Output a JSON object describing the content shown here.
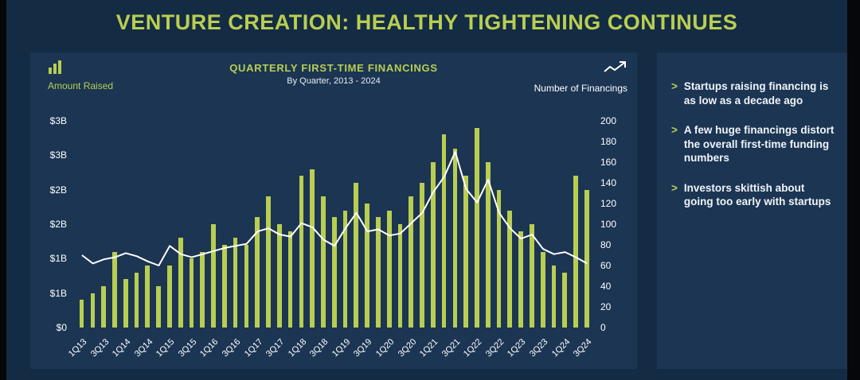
{
  "slide": {
    "title": "VENTURE CREATION: HEALTHY TIGHTENING CONTINUES"
  },
  "chart_data": {
    "type": "bar",
    "title": "QUARTERLY FIRST-TIME FINANCINGS",
    "subtitle": "By Quarter, 2013 - 2024",
    "grid": false,
    "legend_position": "top",
    "categories": [
      "1Q13",
      "2Q13",
      "3Q13",
      "4Q13",
      "1Q14",
      "2Q14",
      "3Q14",
      "4Q14",
      "1Q15",
      "2Q15",
      "3Q15",
      "4Q15",
      "1Q16",
      "2Q16",
      "3Q16",
      "4Q16",
      "1Q17",
      "2Q17",
      "3Q17",
      "4Q17",
      "1Q18",
      "2Q18",
      "3Q18",
      "4Q18",
      "1Q19",
      "2Q19",
      "3Q19",
      "4Q19",
      "1Q20",
      "2Q20",
      "3Q20",
      "4Q20",
      "1Q21",
      "2Q21",
      "3Q21",
      "4Q21",
      "1Q22",
      "2Q22",
      "3Q22",
      "4Q22",
      "1Q23",
      "2Q23",
      "3Q23",
      "4Q23",
      "1Q24",
      "2Q24",
      "3Q24"
    ],
    "series": [
      {
        "name": "Amount Raised",
        "type": "bar",
        "axis": "left",
        "unit": "$B",
        "values": [
          0.4,
          0.5,
          0.6,
          1.1,
          0.7,
          0.8,
          0.9,
          0.6,
          0.9,
          1.3,
          1.0,
          1.1,
          1.5,
          1.2,
          1.3,
          1.2,
          1.6,
          1.9,
          1.5,
          1.4,
          2.2,
          2.3,
          1.9,
          1.6,
          1.7,
          2.1,
          1.8,
          1.6,
          1.7,
          1.5,
          1.9,
          2.1,
          2.4,
          2.8,
          2.6,
          2.2,
          2.9,
          2.4,
          2.0,
          1.7,
          1.4,
          1.5,
          1.1,
          0.9,
          0.8,
          2.2,
          2.0
        ]
      },
      {
        "name": "Number of Financings",
        "type": "line",
        "axis": "right",
        "values": [
          70,
          62,
          66,
          68,
          72,
          69,
          64,
          60,
          79,
          71,
          68,
          71,
          74,
          77,
          79,
          81,
          93,
          96,
          90,
          88,
          101,
          97,
          85,
          79,
          96,
          111,
          93,
          95,
          89,
          91,
          101,
          111,
          131,
          146,
          170,
          134,
          121,
          143,
          111,
          96,
          86,
          90,
          76,
          71,
          73,
          68,
          62
        ]
      }
    ],
    "y_left": {
      "label": "Amount Raised",
      "min": 0,
      "max": 3,
      "tick_labels": [
        "$3B",
        "$3B",
        "$2B",
        "$2B",
        "$1B",
        "$1B",
        "$0"
      ]
    },
    "y_right": {
      "label": "Number of Financings",
      "min": 0,
      "max": 200,
      "tick_labels": [
        "200",
        "180",
        "160",
        "140",
        "120",
        "100",
        "80",
        "60",
        "40",
        "20",
        "0"
      ]
    },
    "x_tick_labels": [
      "1Q13",
      "3Q13",
      "1Q14",
      "3Q14",
      "1Q15",
      "3Q15",
      "1Q16",
      "3Q16",
      "1Q17",
      "3Q17",
      "1Q18",
      "3Q18",
      "1Q19",
      "3Q19",
      "1Q20",
      "3Q20",
      "1Q21",
      "3Q21",
      "1Q22",
      "3Q22",
      "1Q23",
      "3Q23",
      "1Q24",
      "3Q24"
    ],
    "x_tick_step": 2,
    "colors": {
      "bar": "#b9ce51",
      "line": "#ffffff"
    }
  },
  "sidebar": {
    "chevron": ">",
    "bullets": [
      {
        "text": "Startups raising financing is as low as a decade ago"
      },
      {
        "text": "A few huge financings distort the overall first-time funding numbers"
      },
      {
        "text": "Investors skittish about going too early with startups"
      }
    ]
  }
}
